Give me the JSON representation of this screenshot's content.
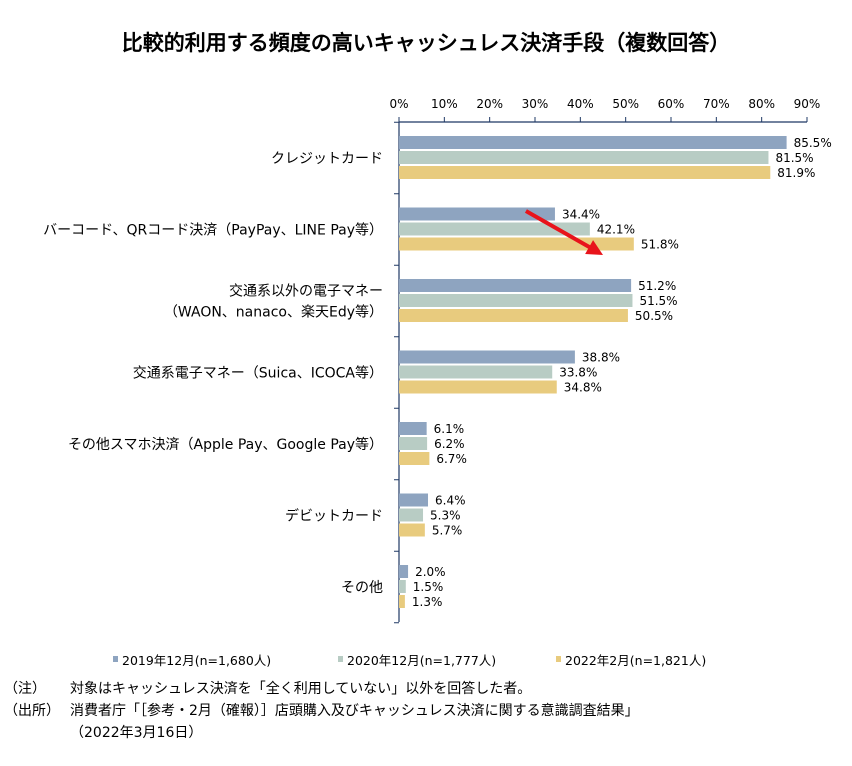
{
  "chart_data": {
    "type": "bar",
    "orientation": "horizontal",
    "title": "比較的利用する頻度の高いキャッシュレス決済手段（複数回答）",
    "xlim": [
      0,
      90
    ],
    "x_ticks": [
      "0%",
      "10%",
      "20%",
      "30%",
      "40%",
      "50%",
      "60%",
      "70%",
      "80%",
      "90%"
    ],
    "x_axis_position": "top",
    "grid": false,
    "legend_position": "bottom",
    "categories": [
      [
        "クレジットカード"
      ],
      [
        "バーコード、QRコード決済（PayPay、LINE Pay等）"
      ],
      [
        "交通系以外の電子マネー",
        "（WAON、nanaco、楽天Edy等）"
      ],
      [
        "交通系電子マネー（Suica、ICOCA等）"
      ],
      [
        "その他スマホ決済（Apple Pay、Google Pay等）"
      ],
      [
        "デビットカード"
      ],
      [
        "その他"
      ]
    ],
    "series": [
      {
        "name": "2019年12月(n=1,680人)",
        "color": "#8EA4C0",
        "values": [
          85.5,
          34.4,
          51.2,
          38.8,
          6.1,
          6.4,
          2.0
        ]
      },
      {
        "name": "2020年12月(n=1,777人)",
        "color": "#B8CCC4",
        "values": [
          81.5,
          42.1,
          51.5,
          33.8,
          6.2,
          5.3,
          1.5
        ]
      },
      {
        "name": "2022年2月(n=1,821人)",
        "color": "#E8CB7E",
        "values": [
          81.9,
          51.8,
          50.5,
          34.8,
          6.7,
          5.7,
          1.3
        ]
      }
    ],
    "annotations": [
      {
        "type": "arrow",
        "color": "#E8141B",
        "from_category": 1,
        "from_value": 28,
        "to_value": 45
      }
    ]
  },
  "notes": [
    {
      "label": "（注）",
      "text": "対象はキャッシュレス決済を「全く利用していない」以外を回答した者。"
    },
    {
      "label": "（出所）",
      "text": "消費者庁「［参考・2月（確報）］店頭購入及びキャッシュレス決済に関する意識調査結果」"
    },
    {
      "label": "",
      "text": "（2022年3月16日）"
    }
  ]
}
